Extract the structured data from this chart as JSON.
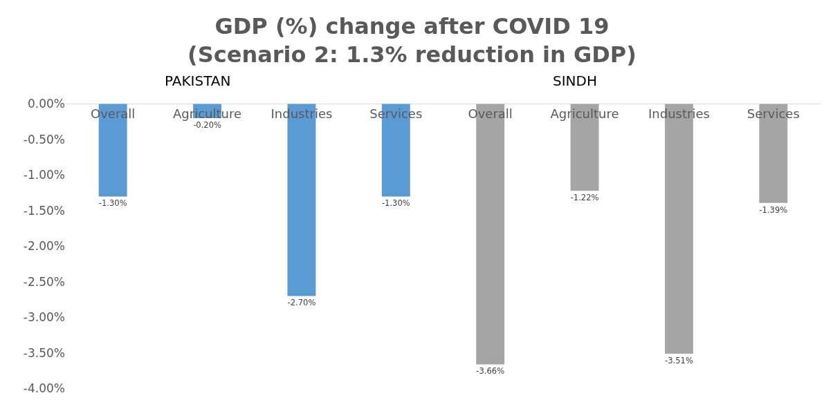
{
  "chart_data": {
    "type": "bar",
    "title": "GDP (%) change after COVID 19 (Scenario 2: 1.3% reduction in GDP)",
    "categories": [
      "Overall",
      "Agriculture",
      "Industries",
      "Services",
      "Overall",
      "Agriculture",
      "Industries",
      "Services"
    ],
    "values": [
      -1.3,
      -0.2,
      -2.7,
      -1.3,
      -3.66,
      -1.22,
      -3.51,
      -1.39
    ],
    "value_labels": [
      "-1.30%",
      "-0.20%",
      "-2.70%",
      "-1.30%",
      "-3.66%",
      "-1.22%",
      "-3.51%",
      "-1.39%"
    ],
    "colors": [
      "#5b9bd5",
      "#5b9bd5",
      "#5b9bd5",
      "#5b9bd5",
      "#a5a5a5",
      "#a5a5a5",
      "#a5a5a5",
      "#a5a5a5"
    ],
    "annotations": [
      "PAKISTAN",
      "SINDH"
    ],
    "ylim": [
      -4,
      0
    ],
    "yticks": [
      {
        "value": 0,
        "label": "0.00%"
      },
      {
        "value": -0.5,
        "label": "-0.50%"
      },
      {
        "value": -1,
        "label": "-1.00%"
      },
      {
        "value": -1.5,
        "label": "-1.50%"
      },
      {
        "value": -2,
        "label": "-2.00%"
      },
      {
        "value": -2.5,
        "label": "-2.50%"
      },
      {
        "value": -3,
        "label": "-3.00%"
      },
      {
        "value": -3.5,
        "label": "-3.50%"
      },
      {
        "value": -4,
        "label": "-4.00%"
      }
    ],
    "grid": false,
    "legend": false
  }
}
